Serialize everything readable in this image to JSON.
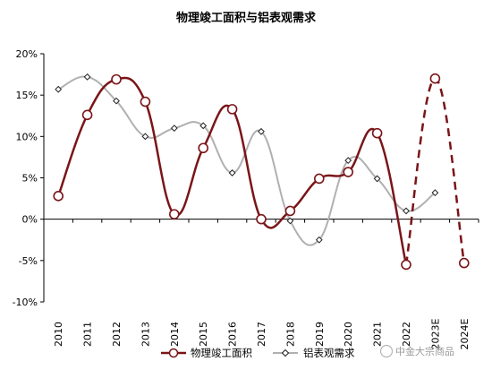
{
  "chart_data": {
    "type": "line",
    "title": "物理竣工面积与铝表观需求",
    "categories": [
      "2010",
      "2011",
      "2012",
      "2013",
      "2014",
      "2015",
      "2016",
      "2017",
      "2018",
      "2019",
      "2020",
      "2021",
      "2022",
      "2023E",
      "2024E"
    ],
    "y_ticks": [
      "20%",
      "15%",
      "10%",
      "5%",
      "0%",
      "-5%",
      "-10%"
    ],
    "ylim": [
      -10,
      20
    ],
    "y_unit": "%",
    "grid": false,
    "legend_position": "bottom",
    "series": [
      {
        "name": "物理竣工面积",
        "color": "#7a1518",
        "marker": "circle",
        "values": [
          2.8,
          12.6,
          16.9,
          14.2,
          0.6,
          8.6,
          13.3,
          0.0,
          1.0,
          4.9,
          5.7,
          10.4,
          -5.5,
          17.0,
          -5.3
        ],
        "forecast_from_index": 12
      },
      {
        "name": "铝表观需求",
        "color": "#b0b0b0",
        "marker": "diamond",
        "values": [
          15.7,
          17.2,
          14.3,
          10.0,
          11.0,
          11.3,
          5.6,
          10.6,
          -0.2,
          -2.5,
          7.1,
          4.9,
          1.0,
          3.2,
          null
        ]
      }
    ]
  },
  "watermark": "中金大宗商品"
}
